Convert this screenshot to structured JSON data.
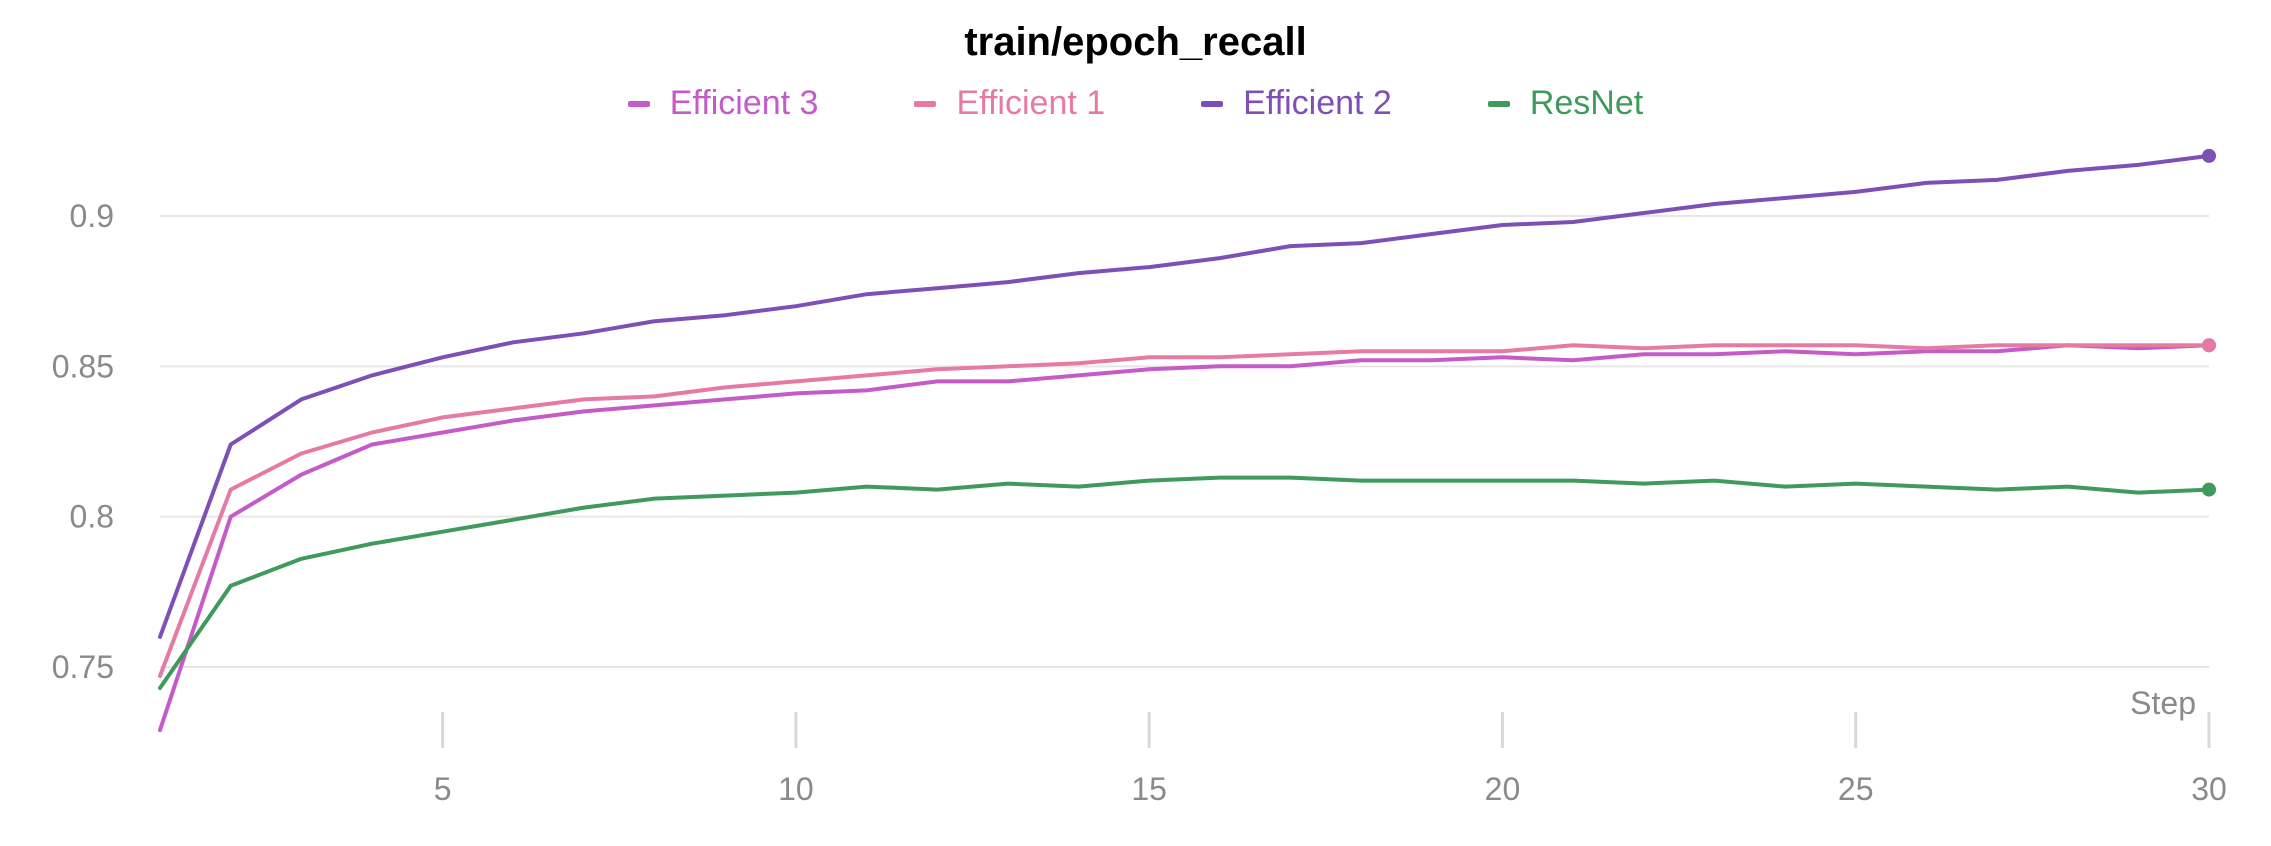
{
  "chart_data": {
    "type": "line",
    "title": "train/epoch_recall",
    "xlabel": "Step",
    "ylabel": "",
    "xlim": [
      1,
      30
    ],
    "ylim": [
      0.72,
      0.93
    ],
    "xticks": [
      5,
      10,
      15,
      20,
      25,
      30
    ],
    "yticks": [
      0.75,
      0.8,
      0.85,
      0.9
    ],
    "ytick_labels": [
      "0.75",
      "0.8",
      "0.85",
      "0.9"
    ],
    "grid": true,
    "legend_position": "top",
    "x": [
      1,
      2,
      3,
      4,
      5,
      6,
      7,
      8,
      9,
      10,
      11,
      12,
      13,
      14,
      15,
      16,
      17,
      18,
      19,
      20,
      21,
      22,
      23,
      24,
      25,
      26,
      27,
      28,
      29,
      30
    ],
    "series": [
      {
        "name": "Efficient 3",
        "color": "#c45bc8",
        "values": [
          0.729,
          0.8,
          0.814,
          0.824,
          0.828,
          0.832,
          0.835,
          0.837,
          0.839,
          0.841,
          0.842,
          0.845,
          0.845,
          0.847,
          0.849,
          0.85,
          0.85,
          0.852,
          0.852,
          0.853,
          0.852,
          0.854,
          0.854,
          0.855,
          0.854,
          0.855,
          0.855,
          0.857,
          0.856,
          0.857
        ]
      },
      {
        "name": "Efficient 1",
        "color": "#e57ba4",
        "values": [
          0.747,
          0.809,
          0.821,
          0.828,
          0.833,
          0.836,
          0.839,
          0.84,
          0.843,
          0.845,
          0.847,
          0.849,
          0.85,
          0.851,
          0.853,
          0.853,
          0.854,
          0.855,
          0.855,
          0.855,
          0.857,
          0.856,
          0.857,
          0.857,
          0.857,
          0.856,
          0.857,
          0.857,
          0.857,
          0.857
        ]
      },
      {
        "name": "Efficient 2",
        "color": "#7e4fb5",
        "values": [
          0.76,
          0.824,
          0.839,
          0.847,
          0.853,
          0.858,
          0.861,
          0.865,
          0.867,
          0.87,
          0.874,
          0.876,
          0.878,
          0.881,
          0.883,
          0.886,
          0.89,
          0.891,
          0.894,
          0.897,
          0.898,
          0.901,
          0.904,
          0.906,
          0.908,
          0.911,
          0.912,
          0.915,
          0.917,
          0.92
        ]
      },
      {
        "name": "ResNet",
        "color": "#3f9a5c",
        "values": [
          0.743,
          0.777,
          0.786,
          0.791,
          0.795,
          0.799,
          0.803,
          0.806,
          0.807,
          0.808,
          0.81,
          0.809,
          0.811,
          0.81,
          0.812,
          0.813,
          0.813,
          0.812,
          0.812,
          0.812,
          0.812,
          0.811,
          0.812,
          0.81,
          0.811,
          0.81,
          0.809,
          0.81,
          0.808,
          0.809
        ]
      }
    ]
  }
}
